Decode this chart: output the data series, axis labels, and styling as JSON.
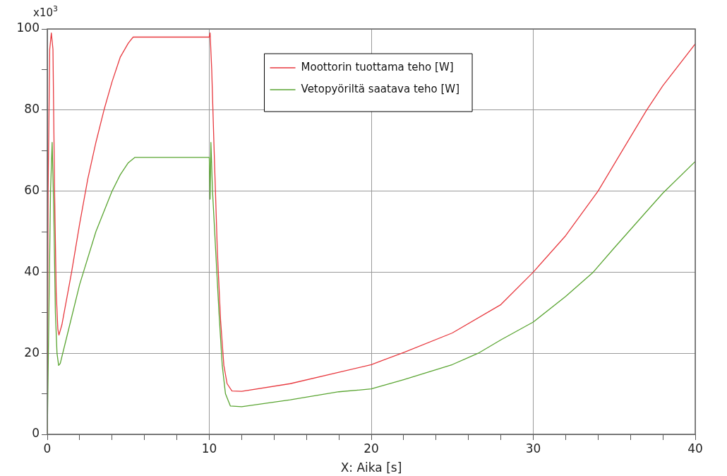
{
  "chart_data": {
    "type": "line",
    "xlabel": "X: Aika [s]",
    "ylabel": "x10$^{3}$",
    "xlim": [
      0,
      40
    ],
    "xticks": [
      0,
      {
        "value": 2,
        "label": null
      },
      {
        "value": 4,
        "label": null
      },
      {
        "value": 6,
        "label": null
      },
      {
        "value": 8,
        "label": null
      },
      10,
      {
        "value": 12,
        "label": null
      },
      {
        "value": 14,
        "label": null
      },
      {
        "value": 16,
        "label": null
      },
      {
        "value": 18,
        "label": null
      },
      20,
      {
        "value": 22,
        "label": null
      },
      {
        "value": 24,
        "label": null
      },
      {
        "value": 26,
        "label": null
      },
      {
        "value": 28,
        "label": null
      },
      30,
      {
        "value": 32,
        "label": null
      },
      {
        "value": 34,
        "label": null
      },
      {
        "value": 36,
        "label": null
      },
      {
        "value": 38,
        "label": null
      },
      40
    ],
    "ylim": [
      0,
      100
    ],
    "yticks": [
      0,
      {
        "value": 10,
        "label": null
      },
      20,
      {
        "value": 30,
        "label": null
      },
      40,
      {
        "value": 50,
        "label": null
      },
      60,
      {
        "value": 70,
        "label": null
      },
      80,
      {
        "value": 90,
        "label": null
      },
      100
    ],
    "grid": true,
    "legend": "top",
    "marker": "none",
    "line_style": "solid",
    "series": [
      {
        "name": "Moottorin tuottama teho [W]",
        "color": "#e8393f",
        "x": [
          0,
          0.05,
          0.15,
          0.25,
          0.35,
          0.45,
          0.55,
          0.65,
          0.72,
          0.9,
          1.5,
          2,
          2.5,
          3,
          3.5,
          4,
          4.5,
          5,
          5.3,
          10,
          10.05,
          10.15,
          10.3,
          10.5,
          10.7,
          10.9,
          11.1,
          11.4,
          12,
          15,
          18,
          20,
          22,
          25,
          28,
          30,
          32,
          34,
          35.5,
          37,
          38,
          40
        ],
        "values": [
          0,
          60,
          95,
          99,
          95,
          60,
          35,
          26,
          24.5,
          27,
          40,
          52,
          63,
          72,
          80,
          87,
          93,
          96.5,
          98,
          98,
          99,
          90,
          70,
          45,
          28,
          17,
          12.5,
          10.7,
          10.6,
          12.5,
          15.3,
          17.2,
          20.2,
          25,
          32,
          40,
          49,
          60,
          70,
          80,
          86,
          96.3
        ]
      },
      {
        "name": "Vetopyöriltä saatava teho [W]",
        "color": "#5aa532",
        "x": [
          0,
          0.1,
          0.2,
          0.3,
          0.4,
          0.5,
          0.6,
          0.7,
          0.8,
          1.2,
          2,
          3,
          4,
          4.5,
          5,
          5.4,
          10,
          10.05,
          10.1,
          10.2,
          10.4,
          10.6,
          10.8,
          11,
          11.3,
          12,
          15,
          18,
          20,
          22,
          25,
          26.6,
          28,
          30,
          32,
          33.7,
          35,
          37,
          38,
          40
        ],
        "values": [
          0,
          30,
          60,
          72,
          55,
          30,
          20,
          17,
          17.5,
          24,
          37,
          50,
          60,
          64,
          67,
          68.3,
          68.3,
          58,
          72,
          60,
          45,
          30,
          17,
          10,
          7,
          6.8,
          8.5,
          10.5,
          11.2,
          13.5,
          17.2,
          20,
          23.3,
          27.7,
          34,
          40,
          46,
          55,
          59.5,
          67.3
        ]
      }
    ]
  }
}
